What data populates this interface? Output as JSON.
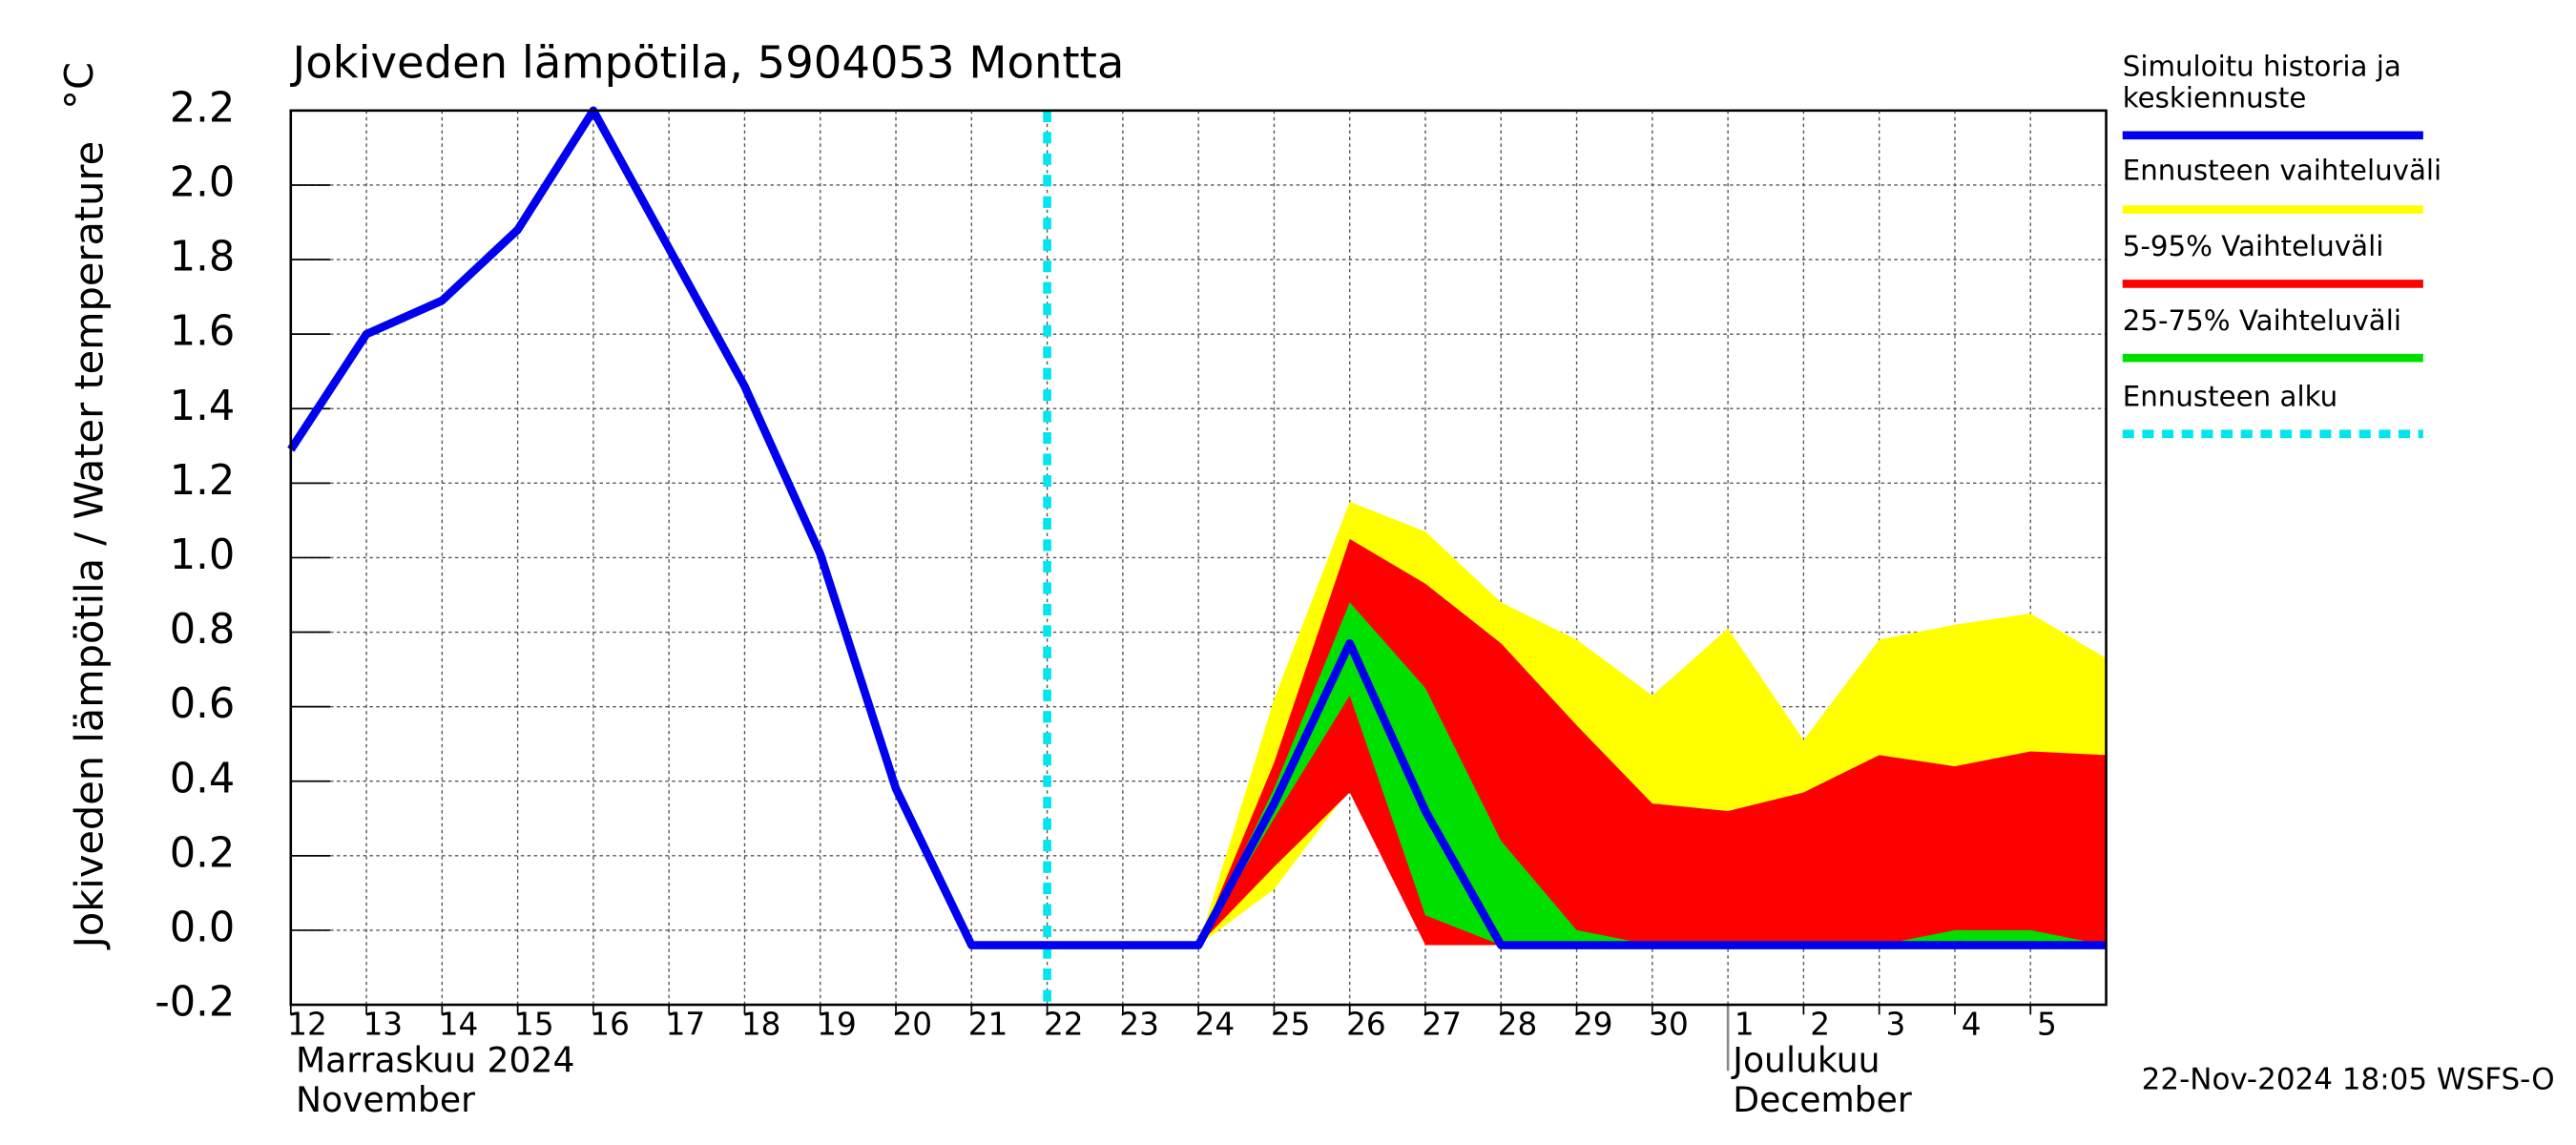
{
  "chart_data": {
    "type": "line",
    "title": "Jokiveden lämpötila, 5904053 Montta",
    "y_label": "Jokiveden lämpötila / Water temperature",
    "y_unit": "°C",
    "timestamp": "22-Nov-2024 18:05 WSFS-O",
    "x": [
      0,
      1,
      2,
      3,
      4,
      5,
      6,
      7,
      8,
      9,
      10,
      11,
      12,
      13,
      14,
      15,
      16,
      17,
      18,
      19,
      20,
      21,
      22,
      23,
      24
    ],
    "xlim": [
      0,
      24
    ],
    "xticks": [
      {
        "value": 0,
        "label": "12"
      },
      {
        "value": 1,
        "label": "13"
      },
      {
        "value": 2,
        "label": "14"
      },
      {
        "value": 3,
        "label": "15"
      },
      {
        "value": 4,
        "label": "16"
      },
      {
        "value": 5,
        "label": "17"
      },
      {
        "value": 6,
        "label": "18"
      },
      {
        "value": 7,
        "label": "19"
      },
      {
        "value": 8,
        "label": "20"
      },
      {
        "value": 9,
        "label": "21"
      },
      {
        "value": 10,
        "label": "22"
      },
      {
        "value": 11,
        "label": "23"
      },
      {
        "value": 12,
        "label": "24"
      },
      {
        "value": 13,
        "label": "25"
      },
      {
        "value": 14,
        "label": "26"
      },
      {
        "value": 15,
        "label": "27"
      },
      {
        "value": 16,
        "label": "28"
      },
      {
        "value": 17,
        "label": "29"
      },
      {
        "value": 18,
        "label": "30"
      },
      {
        "value": 19,
        "label": "1"
      },
      {
        "value": 20,
        "label": "2"
      },
      {
        "value": 21,
        "label": "3"
      },
      {
        "value": 22,
        "label": "4"
      },
      {
        "value": 23,
        "label": "5"
      }
    ],
    "months": [
      {
        "x": 0,
        "label": "Marraskuu 2024",
        "label_en": "November"
      },
      {
        "x": 19,
        "label": "Joulukuu",
        "label_en": "December"
      }
    ],
    "ylim": [
      -0.2,
      2.2
    ],
    "yticks": [
      -0.2,
      {
        "value": 0,
        "label": "0.0"
      },
      0.2,
      0.4,
      0.6,
      0.8,
      {
        "value": 1,
        "label": "1.0"
      },
      1.2,
      1.4,
      1.6,
      1.8,
      {
        "value": 2,
        "label": "2.0"
      },
      2.2
    ],
    "grid": true,
    "bands": [
      {
        "name": "Ennusteen vaihteluväli",
        "color": "#ffff00",
        "upper": [
          null,
          null,
          null,
          null,
          null,
          null,
          null,
          null,
          null,
          null,
          null,
          null,
          -0.04,
          0.62,
          1.15,
          1.07,
          0.88,
          0.78,
          0.63,
          0.81,
          0.51,
          0.78,
          0.82,
          0.85,
          0.73
        ],
        "lower": [
          null,
          null,
          null,
          null,
          null,
          null,
          null,
          null,
          null,
          null,
          null,
          null,
          -0.04,
          0.11,
          0.38,
          -0.04,
          -0.04,
          -0.04,
          -0.04,
          -0.04,
          -0.04,
          -0.04,
          -0.04,
          -0.04,
          -0.04
        ]
      },
      {
        "name": "5-95% Vaihteluväli",
        "color": "#ff0000",
        "upper": [
          null,
          null,
          null,
          null,
          null,
          null,
          null,
          null,
          null,
          null,
          null,
          null,
          -0.04,
          0.45,
          1.05,
          0.93,
          0.77,
          0.55,
          0.34,
          0.32,
          0.37,
          0.47,
          0.44,
          0.48,
          0.47
        ],
        "lower": [
          null,
          null,
          null,
          null,
          null,
          null,
          null,
          null,
          null,
          null,
          null,
          null,
          -0.04,
          0.17,
          0.37,
          -0.04,
          -0.04,
          -0.04,
          -0.04,
          -0.04,
          -0.04,
          -0.04,
          -0.04,
          -0.04,
          -0.04
        ]
      },
      {
        "name": "25-75% Vaihteluväli",
        "color": "#00e000",
        "upper": [
          null,
          null,
          null,
          null,
          null,
          null,
          null,
          null,
          null,
          null,
          null,
          null,
          -0.04,
          0.38,
          0.88,
          0.65,
          0.24,
          0.0,
          -0.04,
          -0.04,
          -0.04,
          -0.04,
          0.0,
          0.0,
          -0.04
        ],
        "lower": [
          null,
          null,
          null,
          null,
          null,
          null,
          null,
          null,
          null,
          null,
          null,
          null,
          -0.04,
          0.3,
          0.63,
          0.04,
          -0.04,
          -0.04,
          -0.04,
          -0.04,
          -0.04,
          -0.04,
          -0.04,
          -0.04,
          -0.04
        ]
      }
    ],
    "series": [
      {
        "name": "Simuloitu historia ja keskiennuste",
        "color": "#0000ee",
        "values": [
          1.29,
          1.6,
          1.69,
          1.88,
          2.2,
          1.83,
          1.46,
          1.01,
          0.38,
          -0.04,
          -0.04,
          -0.04,
          -0.04,
          0.34,
          0.77,
          0.32,
          -0.04,
          -0.04,
          -0.04,
          -0.04,
          -0.04,
          -0.04,
          -0.04,
          -0.04,
          -0.04
        ]
      }
    ],
    "forecast_start": {
      "name": "Ennusteen alku",
      "color": "#00e5ee",
      "x": 10
    }
  }
}
